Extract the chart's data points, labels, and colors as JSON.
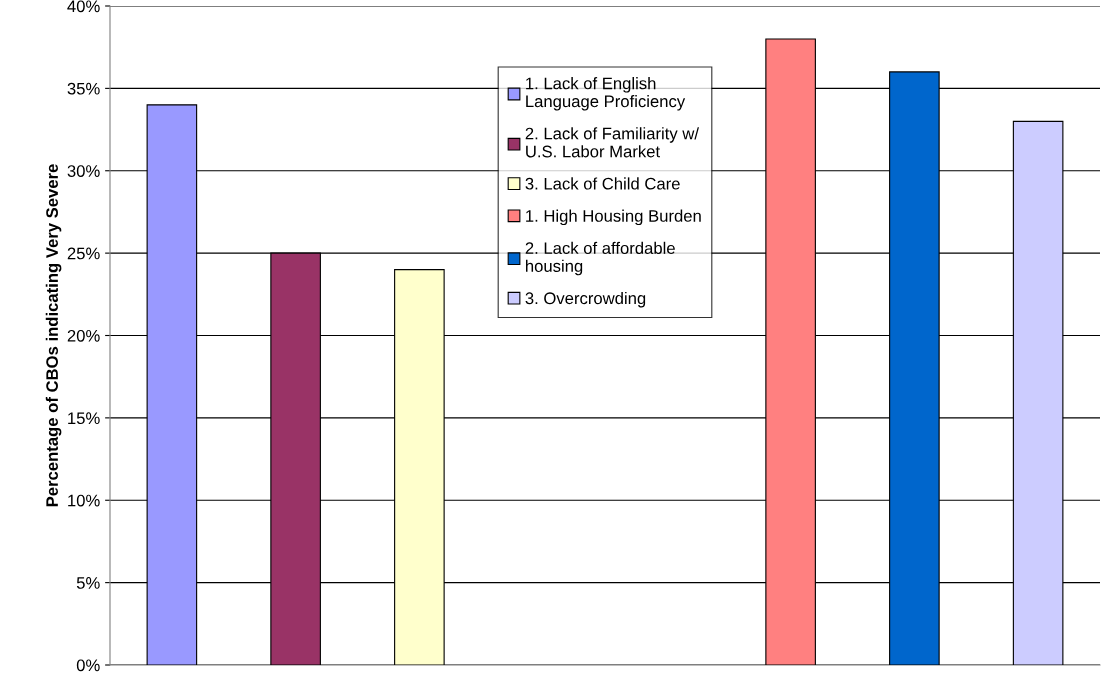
{
  "chart_data": {
    "type": "bar",
    "ylabel": "Percentage of CBOs indicating Very Severe",
    "categories": [
      null,
      null,
      null,
      null,
      null,
      null,
      null,
      null
    ],
    "series": [
      {
        "name": "1. Lack of English\nLanguage Proficiency",
        "color": "#9999ff",
        "values": [
          34,
          null,
          null,
          null,
          null,
          null,
          null,
          null
        ]
      },
      {
        "name": "2. Lack of Familiarity w/\nU.S. Labor Market",
        "color": "#993366",
        "values": [
          null,
          25,
          null,
          null,
          null,
          null,
          null,
          null
        ]
      },
      {
        "name": "3. Lack of Child Care",
        "color": "#ffffcc",
        "values": [
          null,
          null,
          24,
          null,
          null,
          null,
          null,
          null
        ]
      },
      {
        "name": "1. High Housing Burden",
        "color": "#ff8080",
        "values": [
          null,
          null,
          null,
          null,
          null,
          38,
          null,
          null
        ]
      },
      {
        "name": "2. Lack of affordable\nhousing",
        "color": "#0066cc",
        "values": [
          null,
          null,
          null,
          null,
          null,
          null,
          36,
          null
        ]
      },
      {
        "name": "3. Overcrowding",
        "color": "#ccccff",
        "values": [
          null,
          null,
          null,
          null,
          null,
          null,
          null,
          33
        ]
      }
    ],
    "ylim": [
      0,
      40
    ],
    "yticks": [
      {
        "value": 0,
        "label": "0%"
      },
      {
        "value": 5,
        "label": "5%"
      },
      {
        "value": 10,
        "label": "10%"
      },
      {
        "value": 15,
        "label": "15%"
      },
      {
        "value": 20,
        "label": "20%"
      },
      {
        "value": 25,
        "label": "25%"
      },
      {
        "value": 30,
        "label": "30%"
      },
      {
        "value": 35,
        "label": "35%"
      },
      {
        "value": 40,
        "label": "40%"
      }
    ],
    "grid": "y",
    "legend": "top"
  }
}
